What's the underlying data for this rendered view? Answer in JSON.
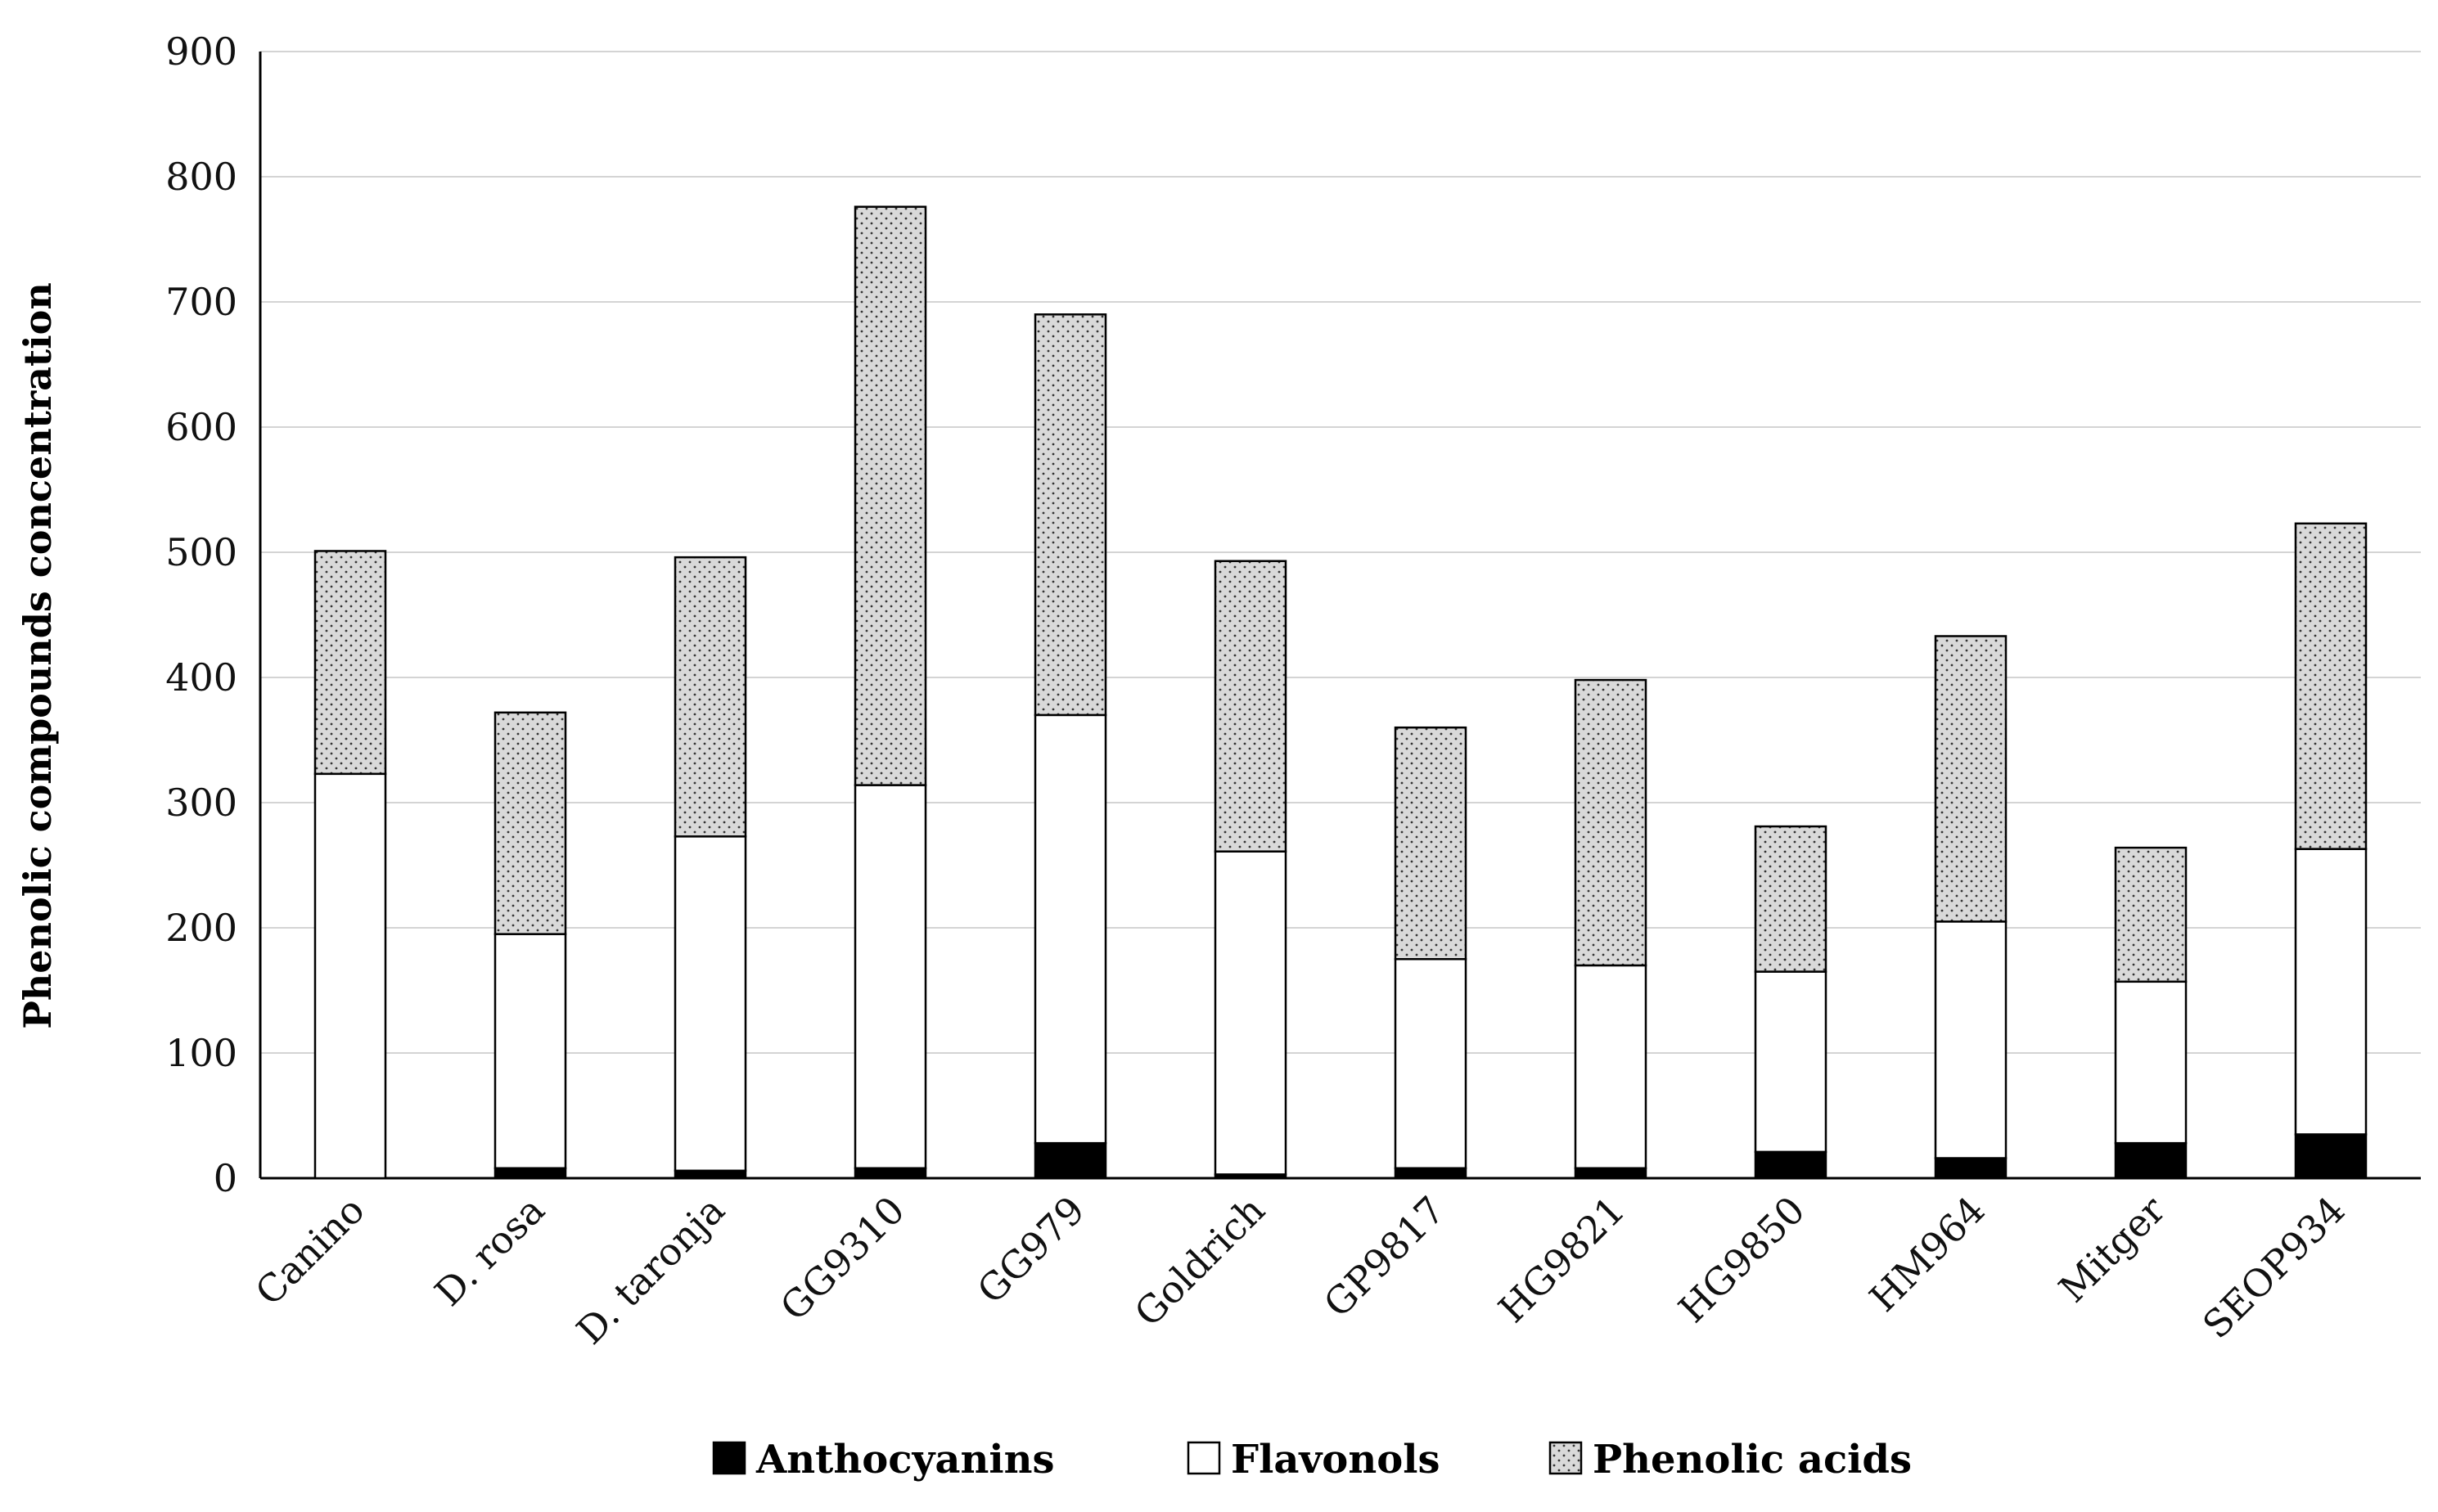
{
  "chart_data": {
    "type": "bar",
    "stacked": true,
    "title": "",
    "xlabel": "",
    "ylabel": "Phenolic compounds concentration",
    "ylim": [
      0,
      900
    ],
    "yticks": [
      0,
      100,
      200,
      300,
      400,
      500,
      600,
      700,
      800,
      900
    ],
    "grid": true,
    "legend_position": "bottom",
    "categories": [
      "Canino",
      "D. rosa",
      "D. taronja",
      "GG9310",
      "GG979",
      "Goldrich",
      "GP9817",
      "HG9821",
      "HG9850",
      "HM964",
      "Mitger",
      "SEOP934"
    ],
    "series": [
      {
        "name": "Anthocyanins",
        "fill": "#000000",
        "pattern": "solid",
        "values": [
          0,
          8,
          6,
          8,
          28,
          3,
          8,
          8,
          21,
          16,
          28,
          35
        ]
      },
      {
        "name": "Flavonols",
        "fill": "#ffffff",
        "pattern": "solid",
        "values": [
          323,
          187,
          267,
          306,
          342,
          258,
          167,
          162,
          144,
          189,
          129,
          228
        ]
      },
      {
        "name": "Phenolic acids",
        "fill": "#d9d9d9",
        "pattern": "dots",
        "values": [
          178,
          177,
          223,
          462,
          320,
          232,
          185,
          228,
          116,
          228,
          107,
          260
        ]
      }
    ]
  }
}
